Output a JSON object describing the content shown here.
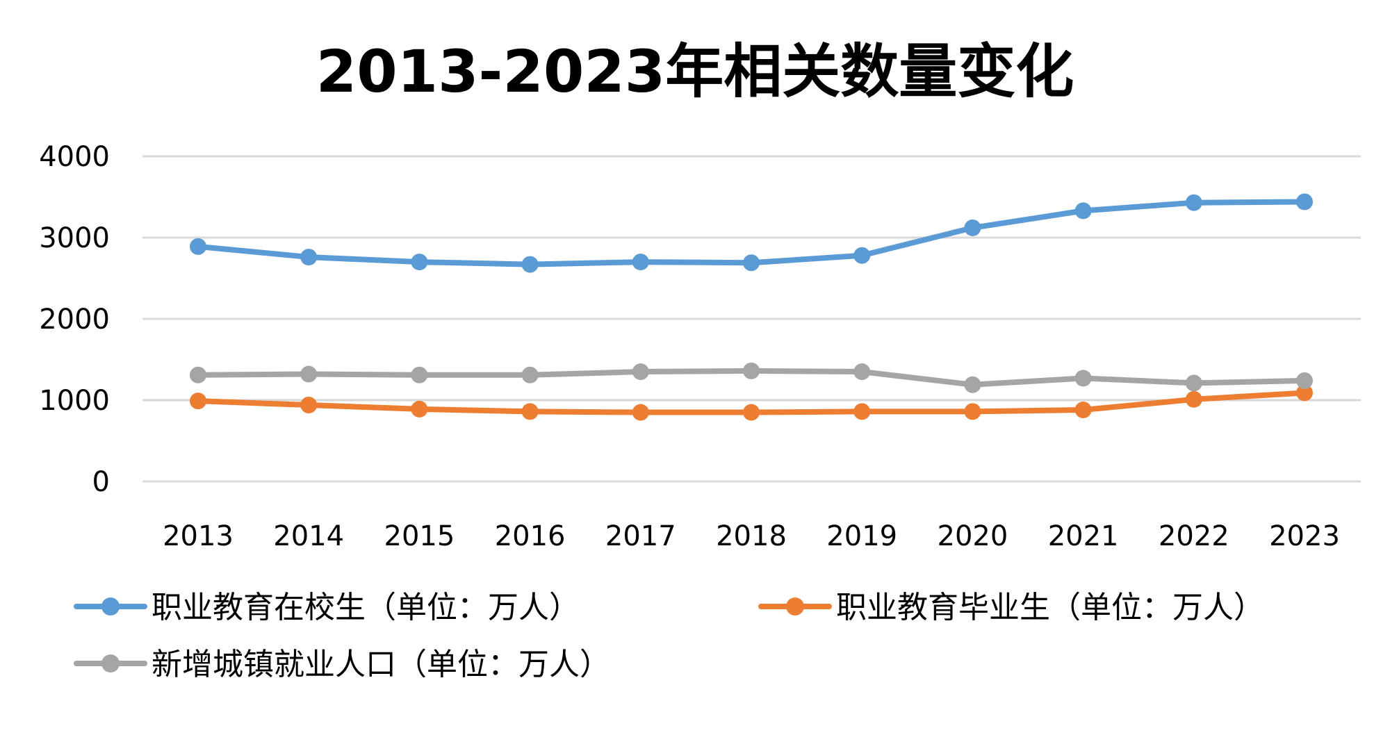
{
  "chart_data": {
    "type": "line",
    "title": "2013-2023年相关数量变化",
    "xlabel": "",
    "ylabel": "",
    "ylim": [
      0,
      4000
    ],
    "yticks": [
      0,
      1000,
      2000,
      3000,
      4000
    ],
    "grid": true,
    "legend_position": "bottom",
    "categories": [
      "2013",
      "2014",
      "2015",
      "2016",
      "2017",
      "2018",
      "2019",
      "2020",
      "2021",
      "2022",
      "2023"
    ],
    "series": [
      {
        "name": "职业教育在校生（单位：万人）",
        "color": "#5b9bd5",
        "values": [
          2890,
          2760,
          2700,
          2670,
          2700,
          2690,
          2780,
          3120,
          3330,
          3430,
          3440
        ]
      },
      {
        "name": "职业教育毕业生（单位：万人）",
        "color": "#ed7d31",
        "values": [
          990,
          940,
          890,
          860,
          850,
          850,
          860,
          860,
          880,
          1010,
          1090
        ]
      },
      {
        "name": "新增城镇就业人口（单位：万人）",
        "color": "#a5a5a5",
        "values": [
          1310,
          1320,
          1310,
          1310,
          1350,
          1360,
          1350,
          1190,
          1270,
          1210,
          1240
        ]
      }
    ]
  }
}
